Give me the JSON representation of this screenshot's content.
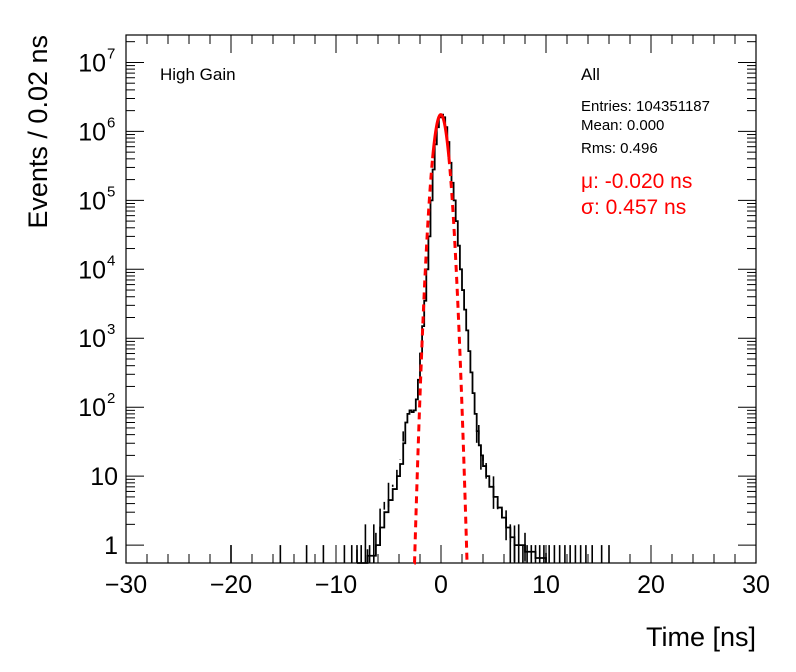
{
  "chart_data": {
    "type": "histogram",
    "title": "",
    "xlabel": "Time [ns]",
    "ylabel": "Events / 0.02 ns",
    "xlim": [
      -30,
      30
    ],
    "ylim": [
      0.55,
      25000000
    ],
    "yscale": "log",
    "x_ticks": [
      {
        "value": -30,
        "label": "−30"
      },
      {
        "value": -20,
        "label": "−20"
      },
      {
        "value": -10,
        "label": "−10"
      },
      {
        "value": 0,
        "label": "0"
      },
      {
        "value": 10,
        "label": "10"
      },
      {
        "value": 20,
        "label": "20"
      },
      {
        "value": 30,
        "label": "30"
      }
    ],
    "y_ticks": [
      {
        "value": 1,
        "label": "1",
        "exp": ""
      },
      {
        "value": 10,
        "label": "10",
        "exp": ""
      },
      {
        "value": 100,
        "label": "10",
        "exp": "2"
      },
      {
        "value": 1000,
        "label": "10",
        "exp": "3"
      },
      {
        "value": 10000,
        "label": "10",
        "exp": "4"
      },
      {
        "value": 100000,
        "label": "10",
        "exp": "5"
      },
      {
        "value": 1000000,
        "label": "10",
        "exp": "6"
      },
      {
        "value": 10000000,
        "label": "10",
        "exp": "7"
      }
    ],
    "annotations": {
      "gain_label": "High Gain",
      "stats_title": "All",
      "entries": "Entries: 104351187",
      "mean": "Mean: 0.000",
      "rms": "Rms: 0.496",
      "fit_mu": "μ: -0.020 ns",
      "fit_sigma": "σ: 0.457 ns"
    },
    "series": [
      {
        "style": "histogram",
        "color": "#000000",
        "points": [
          [
            -8.0,
            0.55
          ],
          [
            -7.0,
            0.7
          ],
          [
            -6.2,
            1.0
          ],
          [
            -5.8,
            1.8
          ],
          [
            -5.4,
            3.0
          ],
          [
            -5.0,
            4.5
          ],
          [
            -4.6,
            6.5
          ],
          [
            -4.2,
            10.0
          ],
          [
            -3.9,
            15.0
          ],
          [
            -3.6,
            30.0
          ],
          [
            -3.4,
            60.0
          ],
          [
            -3.2,
            80.0
          ],
          [
            -3.0,
            90.0
          ],
          [
            -2.8,
            85.0
          ],
          [
            -2.6,
            90.0
          ],
          [
            -2.4,
            130.0
          ],
          [
            -2.2,
            250.0
          ],
          [
            -2.0,
            600.0
          ],
          [
            -1.8,
            1500.0
          ],
          [
            -1.6,
            3500.0
          ],
          [
            -1.4,
            10000.0
          ],
          [
            -1.2,
            30000.0
          ],
          [
            -1.0,
            100000.0
          ],
          [
            -0.8,
            280000.0
          ],
          [
            -0.6,
            650000.0
          ],
          [
            -0.4,
            1150000.0
          ],
          [
            -0.2,
            1600000.0
          ],
          [
            0.0,
            1750000.0
          ],
          [
            0.2,
            1600000.0
          ],
          [
            0.4,
            1150000.0
          ],
          [
            0.6,
            700000.0
          ],
          [
            0.8,
            350000.0
          ],
          [
            1.0,
            180000.0
          ],
          [
            1.2,
            100000.0
          ],
          [
            1.4,
            50000.0
          ],
          [
            1.6,
            22000.0
          ],
          [
            1.8,
            10000.0
          ],
          [
            2.0,
            5000.0
          ],
          [
            2.2,
            2600.0
          ],
          [
            2.4,
            1300.0
          ],
          [
            2.6,
            650.0
          ],
          [
            2.8,
            320.0
          ],
          [
            3.0,
            160.0
          ],
          [
            3.2,
            80.0
          ],
          [
            3.4,
            45.0
          ],
          [
            3.6,
            28.0
          ],
          [
            3.8,
            20.0
          ],
          [
            4.0,
            14.0
          ],
          [
            4.3,
            10.0
          ],
          [
            4.6,
            7.0
          ],
          [
            5.0,
            5.0
          ],
          [
            5.4,
            3.5
          ],
          [
            5.8,
            2.5
          ],
          [
            6.2,
            1.8
          ],
          [
            6.6,
            1.3
          ],
          [
            7.0,
            1.0
          ],
          [
            8.0,
            0.8
          ],
          [
            9.0,
            0.65
          ],
          [
            10.0,
            0.55
          ]
        ]
      },
      {
        "style": "fit-dashed",
        "name": "",
        "color": "#ff0000",
        "gaussian": {
          "mu": -0.02,
          "sigma": 0.457,
          "amplitude": 1750000,
          "solid_range": [
            -0.8,
            0.75
          ],
          "range": [
            -2.55,
            2.55
          ]
        }
      }
    ],
    "isolated_counts": [
      {
        "x": -20.0,
        "count": 1
      },
      {
        "x": -15.3,
        "count": 1
      },
      {
        "x": -12.8,
        "count": 1
      },
      {
        "x": -11.2,
        "count": 1
      },
      {
        "x": -9.2,
        "count": 1
      },
      {
        "x": -8.5,
        "count": 1
      },
      {
        "x": -8.0,
        "count": 1
      },
      {
        "x": -7.6,
        "count": 1
      },
      {
        "x": -7.2,
        "count": 2
      },
      {
        "x": -6.8,
        "count": 1
      },
      {
        "x": -6.4,
        "count": 2
      },
      {
        "x": 6.6,
        "count": 2
      },
      {
        "x": 7.0,
        "count": 1
      },
      {
        "x": 7.4,
        "count": 2
      },
      {
        "x": 7.8,
        "count": 1
      },
      {
        "x": 8.2,
        "count": 1
      },
      {
        "x": 8.6,
        "count": 1
      },
      {
        "x": 9.0,
        "count": 1
      },
      {
        "x": 9.4,
        "count": 1
      },
      {
        "x": 9.8,
        "count": 1
      },
      {
        "x": 10.3,
        "count": 1
      },
      {
        "x": 10.8,
        "count": 1
      },
      {
        "x": 11.3,
        "count": 1
      },
      {
        "x": 11.8,
        "count": 1
      },
      {
        "x": 12.3,
        "count": 1
      },
      {
        "x": 12.8,
        "count": 1
      },
      {
        "x": 13.3,
        "count": 1
      },
      {
        "x": 13.8,
        "count": 1
      },
      {
        "x": 14.4,
        "count": 1
      },
      {
        "x": 15.3,
        "count": 1
      },
      {
        "x": 16.0,
        "count": 1
      }
    ],
    "grid": false,
    "legend": "none"
  }
}
